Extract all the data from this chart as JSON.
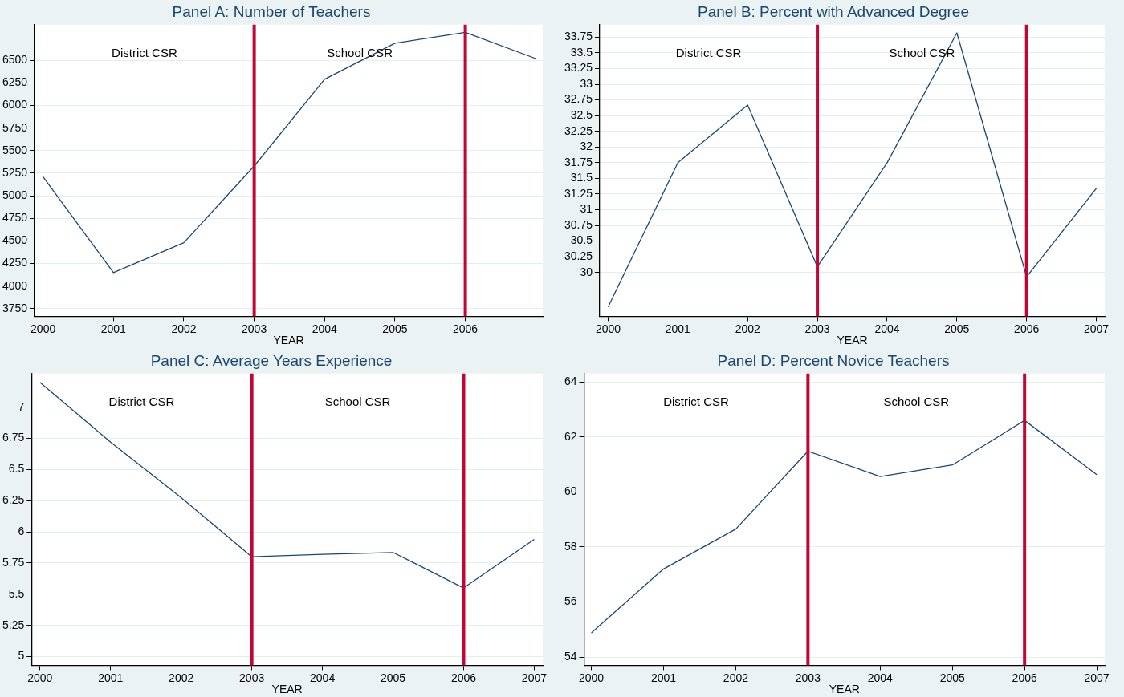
{
  "chart_data": [
    {
      "type": "line",
      "title": "Panel A: Number of Teachers",
      "xlabel": "YEAR",
      "x": [
        2000,
        2001,
        2002,
        2003,
        2004,
        2005,
        2006,
        2007
      ],
      "series": [
        {
          "color": "#1a476f",
          "values": [
            5210,
            4150,
            4480,
            5330,
            6290,
            6690,
            6810,
            6520
          ]
        }
      ],
      "xlim": [
        1999.88,
        2007.1
      ],
      "xticks": [
        2000,
        2001,
        2002,
        2003,
        2004,
        2005,
        2006
      ],
      "ylim": [
        3665,
        6895
      ],
      "yticks": [
        3750,
        4000,
        4250,
        4500,
        4750,
        5000,
        5250,
        5500,
        5750,
        6000,
        6250,
        6500
      ],
      "grid": "y",
      "marker": "none",
      "line_style": "solid",
      "ref_lines": [
        {
          "axis": "x",
          "value": 2003,
          "color": "#c10534"
        },
        {
          "axis": "x",
          "value": 2006,
          "color": "#c10534"
        }
      ],
      "annotations": [
        "District CSR",
        "School CSR"
      ]
    },
    {
      "type": "line",
      "title": "Panel B: Percent with Advanced Degree",
      "xlabel": "YEAR",
      "x": [
        2000,
        2001,
        2002,
        2003,
        2004,
        2005,
        2006,
        2007
      ],
      "series": [
        {
          "color": "#1a476f",
          "values": [
            29.45,
            31.75,
            32.67,
            30.09,
            31.75,
            33.82,
            29.93,
            31.34
          ]
        }
      ],
      "xlim": [
        1999.88,
        2007.12
      ],
      "xticks": [
        2000,
        2001,
        2002,
        2003,
        2004,
        2005,
        2006,
        2007
      ],
      "ylim": [
        29.3,
        33.95
      ],
      "yticks": [
        30,
        30.25,
        30.5,
        30.75,
        31,
        31.25,
        31.5,
        31.75,
        32,
        32.25,
        32.5,
        32.75,
        33,
        33.25,
        33.5,
        33.75
      ],
      "grid": "y",
      "marker": "none",
      "line_style": "solid",
      "ref_lines": [
        {
          "axis": "x",
          "value": 2003,
          "color": "#c10534"
        },
        {
          "axis": "x",
          "value": 2006,
          "color": "#c10534"
        }
      ],
      "annotations": [
        "District CSR",
        "School CSR"
      ]
    },
    {
      "type": "line",
      "title": "Panel C: Average Years Experience",
      "xlabel": "YEAR",
      "x": [
        2000,
        2001,
        2002,
        2003,
        2004,
        2005,
        2006,
        2007
      ],
      "series": [
        {
          "color": "#1a476f",
          "values": [
            7.2,
            6.72,
            6.275,
            5.8,
            5.82,
            5.835,
            5.55,
            5.94
          ]
        }
      ],
      "xlim": [
        1999.88,
        2007.12
      ],
      "xticks": [
        2000,
        2001,
        2002,
        2003,
        2004,
        2005,
        2006,
        2007
      ],
      "ylim": [
        4.93,
        7.27
      ],
      "yticks": [
        5,
        5.25,
        5.5,
        5.75,
        6,
        6.25,
        6.5,
        6.75,
        7
      ],
      "grid": "y",
      "marker": "none",
      "line_style": "solid",
      "ref_lines": [
        {
          "axis": "x",
          "value": 2003,
          "color": "#c10534"
        },
        {
          "axis": "x",
          "value": 2006,
          "color": "#c10534"
        }
      ],
      "annotations": [
        "District CSR",
        "School CSR"
      ]
    },
    {
      "type": "line",
      "title": "Panel D: Percent Novice Teachers",
      "xlabel": "YEAR",
      "x": [
        2000,
        2001,
        2002,
        2003,
        2004,
        2005,
        2006,
        2007
      ],
      "series": [
        {
          "color": "#1a476f",
          "values": [
            54.88,
            57.2,
            58.65,
            61.48,
            60.56,
            60.98,
            62.6,
            60.63
          ]
        }
      ],
      "xlim": [
        1999.9,
        2007.11
      ],
      "xticks": [
        2000,
        2001,
        2002,
        2003,
        2004,
        2005,
        2006,
        2007
      ],
      "ylim": [
        53.7,
        64.3
      ],
      "yticks": [
        54,
        56,
        58,
        60,
        62,
        64
      ],
      "grid": "y",
      "marker": "none",
      "line_style": "solid",
      "ref_lines": [
        {
          "axis": "x",
          "value": 2003,
          "color": "#c10534"
        },
        {
          "axis": "x",
          "value": 2006,
          "color": "#c10534"
        }
      ],
      "annotations": [
        "District CSR",
        "School CSR"
      ]
    }
  ]
}
